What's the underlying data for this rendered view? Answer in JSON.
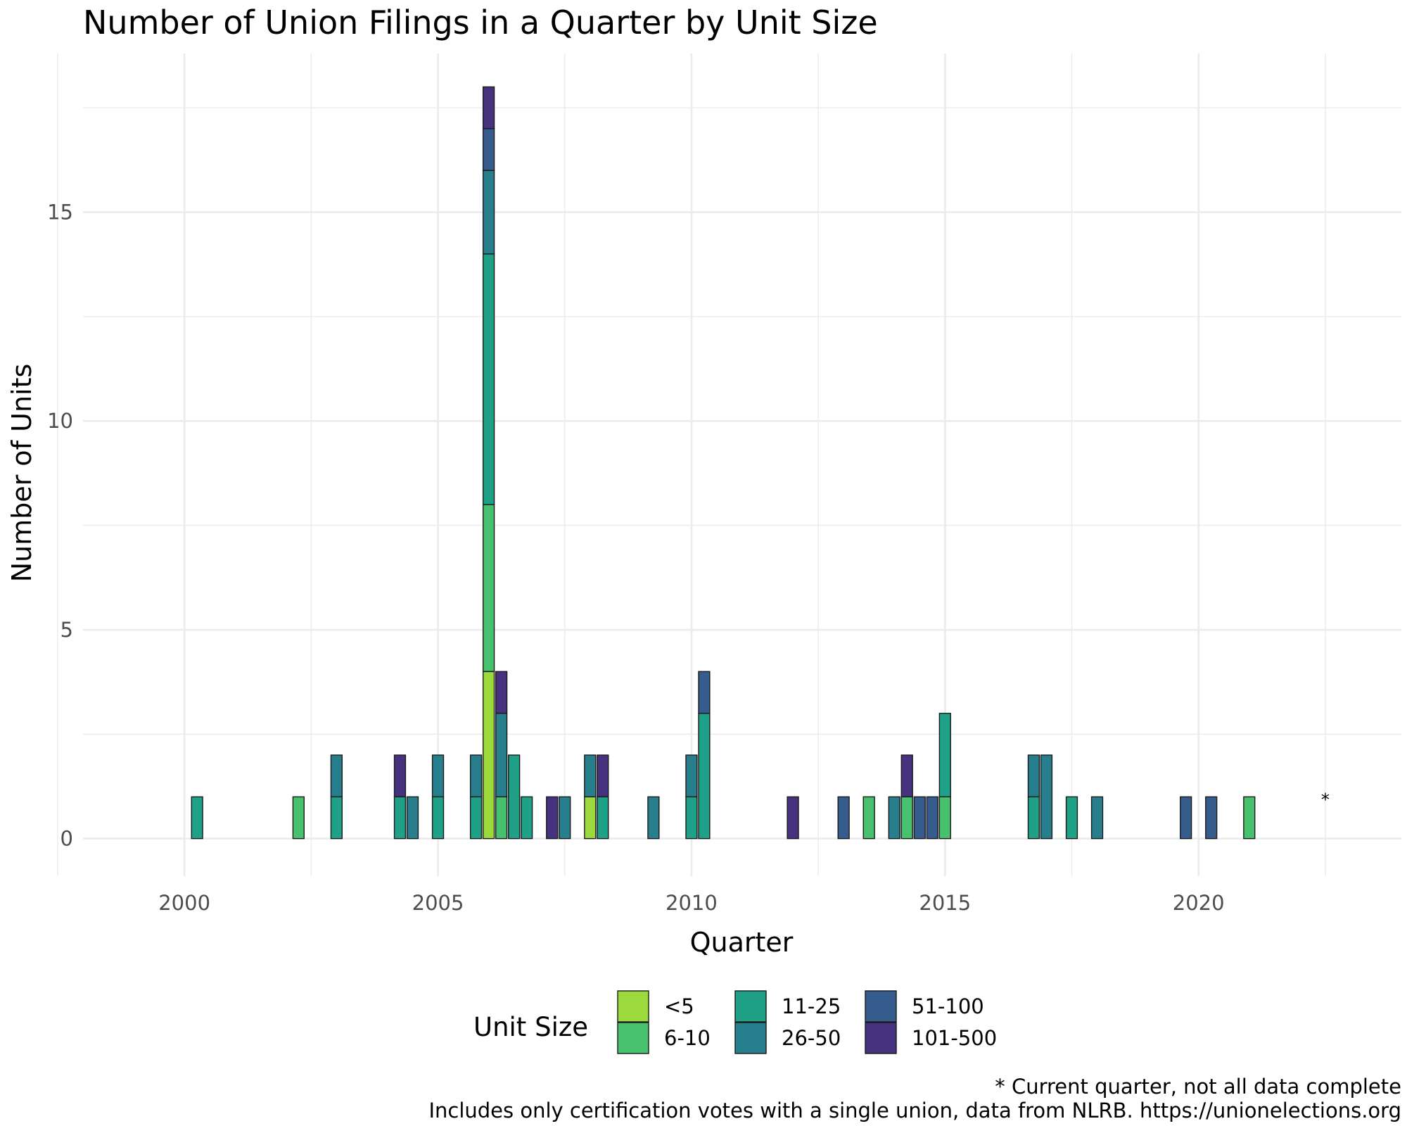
{
  "chart_data": {
    "type": "bar",
    "stacked": true,
    "title": "Number of Union Filings in a Quarter by Unit Size",
    "xlabel": "Quarter",
    "ylabel": "Number of Units",
    "x_ticks": [
      "2000",
      "2005",
      "2010",
      "2015",
      "2020"
    ],
    "y_ticks": [
      "0",
      "5",
      "10",
      "15"
    ],
    "xlim": [
      1998.0,
      2024.0
    ],
    "ylim": [
      -0.9,
      18.8
    ],
    "grid": true,
    "legend": {
      "title": "Unit Size",
      "placement": "bottom",
      "entries": [
        "<5",
        "6-10",
        "11-25",
        "26-50",
        "51-100",
        "101-500"
      ]
    },
    "series": [
      {
        "name": "<5",
        "color": "#9bd93c"
      },
      {
        "name": "6-10",
        "color": "#48c16e"
      },
      {
        "name": "11-25",
        "color": "#1fa187"
      },
      {
        "name": "26-50",
        "color": "#277f8e"
      },
      {
        "name": "51-100",
        "color": "#365c8d"
      },
      {
        "name": "101-500",
        "color": "#46327e"
      }
    ],
    "x_unit": "year",
    "bars": [
      {
        "x": 2000.25,
        "counts": [
          0,
          0,
          1,
          0,
          0,
          0
        ]
      },
      {
        "x": 2002.25,
        "counts": [
          0,
          1,
          0,
          0,
          0,
          0
        ]
      },
      {
        "x": 2003.0,
        "counts": [
          0,
          0,
          1,
          1,
          0,
          0
        ]
      },
      {
        "x": 2004.25,
        "counts": [
          0,
          0,
          1,
          0,
          0,
          1
        ]
      },
      {
        "x": 2004.5,
        "counts": [
          0,
          0,
          0,
          1,
          0,
          0
        ]
      },
      {
        "x": 2005.0,
        "counts": [
          0,
          0,
          1,
          1,
          0,
          0
        ]
      },
      {
        "x": 2005.75,
        "counts": [
          0,
          0,
          1,
          1,
          0,
          0
        ]
      },
      {
        "x": 2006.0,
        "counts": [
          4,
          4,
          6,
          2,
          1,
          1
        ]
      },
      {
        "x": 2006.25,
        "counts": [
          0,
          1,
          0,
          2,
          0,
          1
        ]
      },
      {
        "x": 2006.5,
        "counts": [
          0,
          0,
          2,
          0,
          0,
          0
        ]
      },
      {
        "x": 2006.75,
        "counts": [
          0,
          0,
          1,
          0,
          0,
          0
        ]
      },
      {
        "x": 2007.25,
        "counts": [
          0,
          0,
          0,
          0,
          0,
          1
        ]
      },
      {
        "x": 2007.5,
        "counts": [
          0,
          0,
          0,
          1,
          0,
          0
        ]
      },
      {
        "x": 2008.0,
        "counts": [
          1,
          0,
          0,
          1,
          0,
          0
        ]
      },
      {
        "x": 2008.25,
        "counts": [
          0,
          0,
          1,
          0,
          0,
          1
        ]
      },
      {
        "x": 2009.25,
        "counts": [
          0,
          0,
          0,
          1,
          0,
          0
        ]
      },
      {
        "x": 2010.0,
        "counts": [
          0,
          0,
          1,
          1,
          0,
          0
        ]
      },
      {
        "x": 2010.25,
        "counts": [
          0,
          0,
          3,
          0,
          1,
          0
        ]
      },
      {
        "x": 2012.0,
        "counts": [
          0,
          0,
          0,
          0,
          0,
          1
        ]
      },
      {
        "x": 2013.0,
        "counts": [
          0,
          0,
          0,
          0,
          1,
          0
        ]
      },
      {
        "x": 2013.5,
        "counts": [
          0,
          1,
          0,
          0,
          0,
          0
        ]
      },
      {
        "x": 2014.0,
        "counts": [
          0,
          0,
          0,
          1,
          0,
          0
        ]
      },
      {
        "x": 2014.25,
        "counts": [
          0,
          1,
          0,
          0,
          0,
          1
        ]
      },
      {
        "x": 2014.5,
        "counts": [
          0,
          0,
          0,
          0,
          1,
          0
        ]
      },
      {
        "x": 2014.75,
        "counts": [
          0,
          0,
          0,
          0,
          1,
          0
        ]
      },
      {
        "x": 2015.0,
        "counts": [
          0,
          1,
          2,
          0,
          0,
          0
        ]
      },
      {
        "x": 2016.75,
        "counts": [
          0,
          0,
          1,
          1,
          0,
          0
        ]
      },
      {
        "x": 2017.0,
        "counts": [
          0,
          0,
          0,
          2,
          0,
          0
        ]
      },
      {
        "x": 2017.5,
        "counts": [
          0,
          0,
          1,
          0,
          0,
          0
        ]
      },
      {
        "x": 2018.0,
        "counts": [
          0,
          0,
          0,
          1,
          0,
          0
        ]
      },
      {
        "x": 2019.75,
        "counts": [
          0,
          0,
          0,
          0,
          1,
          0
        ]
      },
      {
        "x": 2020.25,
        "counts": [
          0,
          0,
          0,
          0,
          1,
          0
        ]
      },
      {
        "x": 2021.0,
        "counts": [
          0,
          1,
          0,
          0,
          0,
          0
        ]
      }
    ],
    "annotation": {
      "text": "*",
      "x": 2022.5,
      "y": 1.0
    },
    "caption_lines": [
      "* Current quarter, not all data complete",
      "Includes only certification votes with a single union, data from NLRB. https://unionelections.org"
    ]
  }
}
